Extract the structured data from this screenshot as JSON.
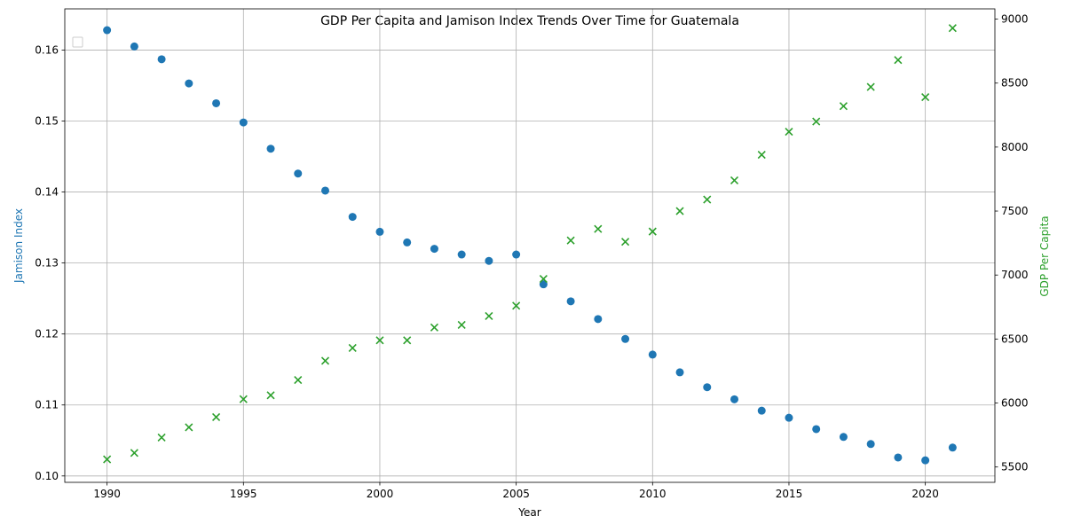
{
  "chart_data": {
    "type": "scatter",
    "title": "GDP Per Capita and Jamison Index Trends Over Time for Guatemala",
    "xlabel": "Year",
    "ylabel_left": "Jamison Index",
    "ylabel_right": "GDP Per Capita",
    "xlim": [
      1988.45,
      2022.55
    ],
    "ylim_left": [
      0.0991,
      0.1658
    ],
    "ylim_right": [
      5380,
      9080
    ],
    "x_ticks": [
      1990,
      1995,
      2000,
      2005,
      2010,
      2015,
      2020
    ],
    "y_left_ticks": [
      0.1,
      0.11,
      0.12,
      0.13,
      0.14,
      0.15,
      0.16
    ],
    "y_left_tick_labels": [
      "0.10",
      "0.11",
      "0.12",
      "0.13",
      "0.14",
      "0.15",
      "0.16"
    ],
    "y_right_ticks": [
      5500,
      6000,
      6500,
      7000,
      7500,
      8000,
      8500,
      9000
    ],
    "grid": true,
    "legend": "top-left (empty)",
    "years": [
      1990,
      1991,
      1992,
      1993,
      1994,
      1995,
      1996,
      1997,
      1998,
      1999,
      2000,
      2001,
      2002,
      2003,
      2004,
      2005,
      2006,
      2007,
      2008,
      2009,
      2010,
      2011,
      2012,
      2013,
      2014,
      2015,
      2016,
      2017,
      2018,
      2019,
      2020,
      2021
    ],
    "series": [
      {
        "axis": "left",
        "marker": "circle",
        "color": "#1f77b4",
        "values": [
          0.1628,
          0.1605,
          0.1587,
          0.1553,
          0.1525,
          0.1498,
          0.1461,
          0.1426,
          0.1402,
          0.1365,
          0.1344,
          0.1329,
          0.132,
          0.1312,
          0.1303,
          0.1312,
          0.127,
          0.1246,
          0.1221,
          0.1193,
          0.1171,
          0.1146,
          0.1125,
          0.1108,
          0.1092,
          0.1082,
          0.1066,
          0.1055,
          0.1045,
          0.1026,
          0.1022,
          0.104
        ]
      },
      {
        "axis": "right",
        "marker": "x",
        "color": "#2ca02c",
        "values": [
          5560,
          5610,
          5730,
          5810,
          5890,
          6030,
          6060,
          6180,
          6330,
          6430,
          6490,
          6490,
          6590,
          6610,
          6680,
          6760,
          6970,
          7270,
          7360,
          7260,
          7340,
          7500,
          7590,
          7740,
          7940,
          8120,
          8200,
          8320,
          8470,
          8680,
          8390,
          8930
        ]
      }
    ]
  }
}
